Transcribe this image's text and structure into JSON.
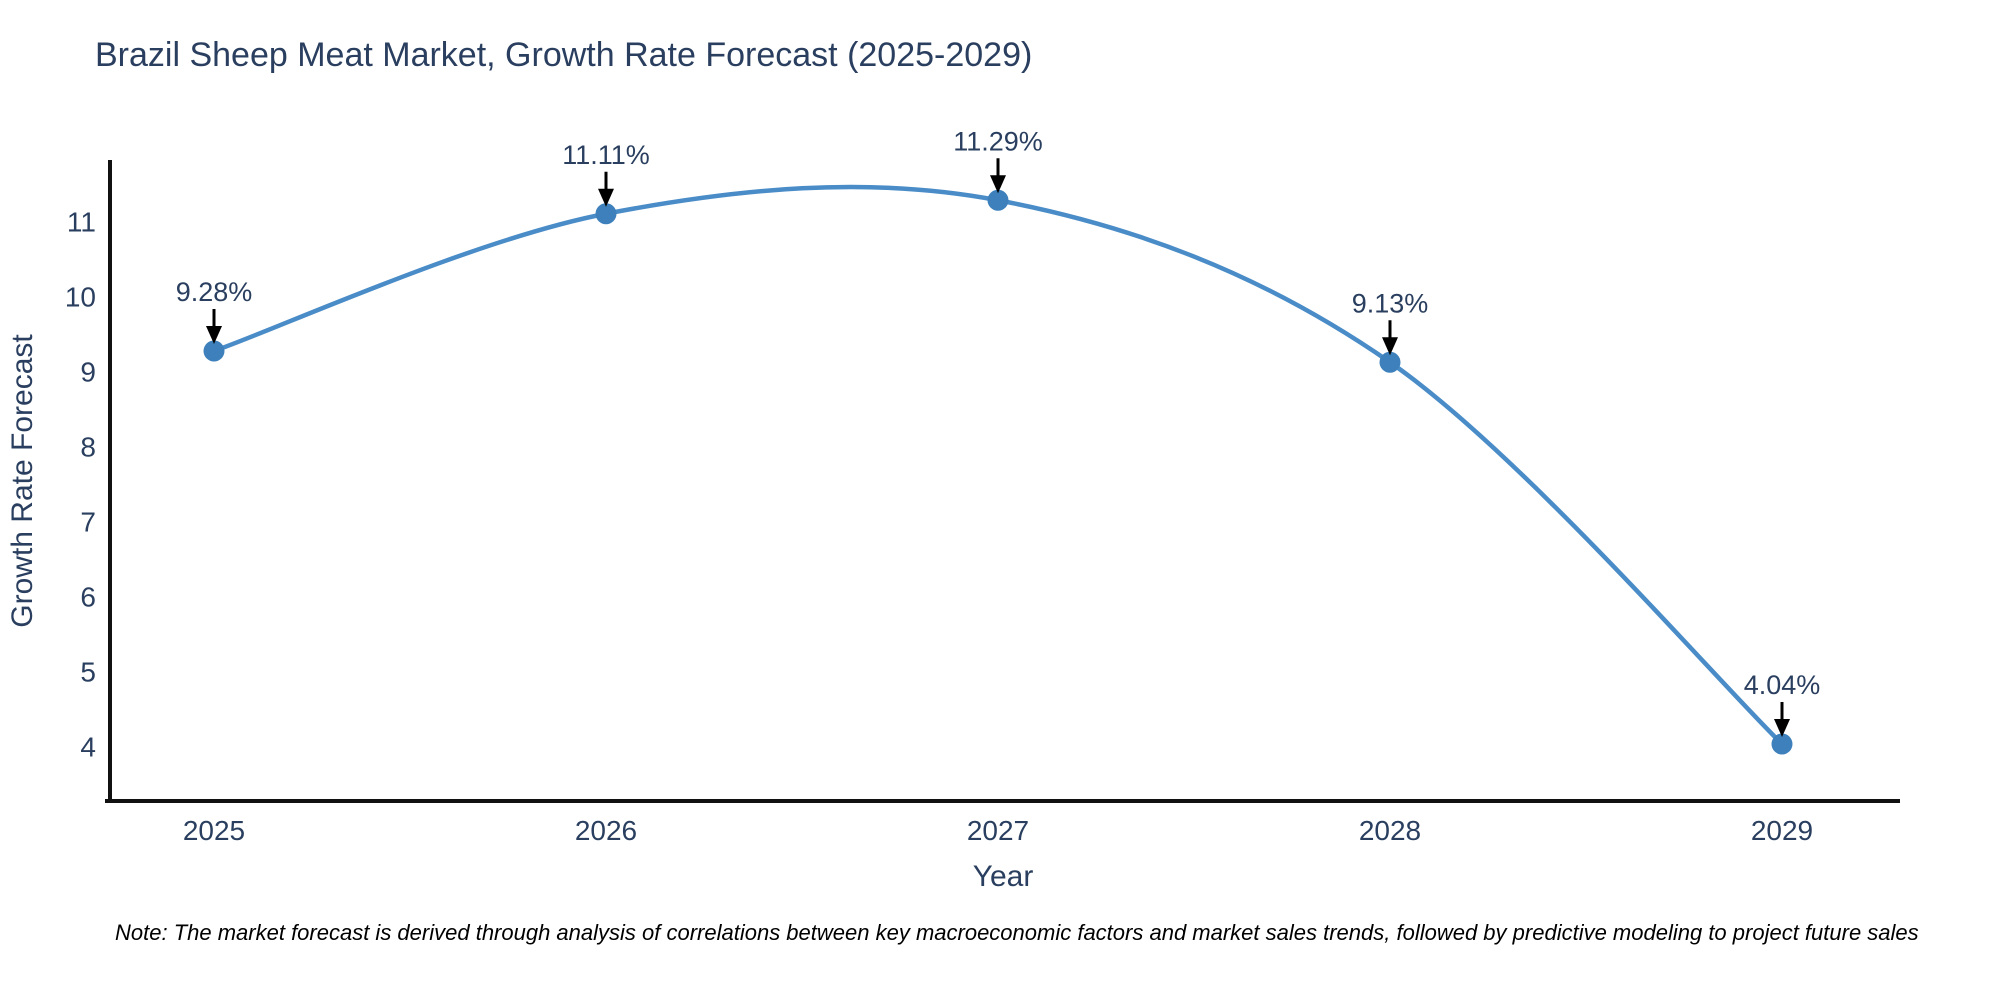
{
  "title": "Brazil Sheep Meat Market, Growth Rate Forecast (2025-2029)",
  "note": "Note: The market forecast is derived through analysis of correlations between key macroeconomic factors and market sales trends, followed by predictive modeling to project future sales",
  "chart_data": {
    "type": "line",
    "title": "Brazil Sheep Meat Market, Growth Rate Forecast (2025-2029)",
    "xlabel": "Year",
    "ylabel": "Growth Rate Forecast",
    "x": [
      2025,
      2026,
      2027,
      2028,
      2029
    ],
    "series": [
      {
        "name": "Growth Rate Forecast",
        "values": [
          9.28,
          11.11,
          11.29,
          9.13,
          4.04
        ],
        "point_labels": [
          "9.28%",
          "11.11%",
          "11.29%",
          "9.13%",
          "4.04%"
        ]
      }
    ],
    "xticks": [
      "2025",
      "2026",
      "2027",
      "2028",
      "2029"
    ],
    "yticks": [
      4,
      5,
      6,
      7,
      8,
      9,
      10,
      11
    ],
    "ylim": [
      3.25,
      11.95
    ],
    "line_shape": "spline",
    "grid": false,
    "legend_position": "none",
    "colors": {
      "line": "#4a8cc7",
      "marker": "#3d80bb",
      "axis_line": "#111111",
      "text": "#2a3f5f",
      "annotation_arrow": "#000000",
      "note": "#000000",
      "background": "#ffffff"
    }
  }
}
